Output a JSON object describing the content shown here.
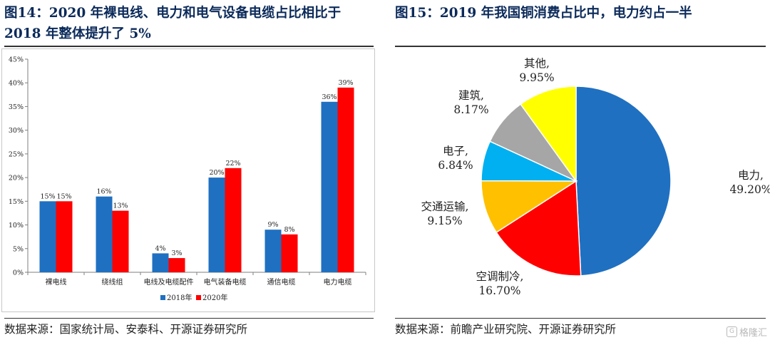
{
  "left": {
    "title_line1": "图14：2020 年裸电线、电力和电气设备电缆占比相比于",
    "title_line2": "2018 年整体提升了 5%",
    "source": "数据来源：国家统计局、安泰科、开源证券研究所"
  },
  "right": {
    "title": "图15：2019 年我国铜消费占比中，电力约占一半",
    "source": "数据来源：前瞻产业研究院、开源证券研究所"
  },
  "watermark": "格隆汇",
  "chart_data": [
    {
      "type": "bar",
      "title": "",
      "categories": [
        "裸电线",
        "绕线组",
        "电线及电缆配件",
        "电气装备电缆",
        "通信电缆",
        "电力电缆"
      ],
      "series": [
        {
          "name": "2018年",
          "color": "#1f70c1",
          "values": [
            15,
            16,
            4,
            20,
            9,
            36
          ],
          "labels": [
            "15%",
            "16%",
            "4%",
            "20%",
            "9%",
            "36%"
          ]
        },
        {
          "name": "2020年",
          "color": "#ff0000",
          "values": [
            15,
            13,
            3,
            22,
            8,
            39
          ],
          "labels": [
            "15%",
            "13%",
            "3%",
            "22%",
            "8%",
            "39%"
          ]
        }
      ],
      "ylim": [
        0,
        45
      ],
      "yticks": [
        "0%",
        "5%",
        "10%",
        "15%",
        "20%",
        "25%",
        "30%",
        "35%",
        "40%",
        "45%"
      ],
      "xlabel": "",
      "ylabel": "",
      "legend": "bottom-center"
    },
    {
      "type": "pie",
      "title": "",
      "slices": [
        {
          "name": "电力,",
          "value": 49.2,
          "label": "49.20%",
          "color": "#1f70c1"
        },
        {
          "name": "空调制冷,",
          "value": 16.7,
          "label": "16.70%",
          "color": "#ff0000"
        },
        {
          "name": "交通运输,",
          "value": 9.15,
          "label": "9.15%",
          "color": "#ffc000"
        },
        {
          "name": "电子,",
          "value": 6.84,
          "label": "6.84%",
          "color": "#00b0f0"
        },
        {
          "name": "建筑,",
          "value": 8.17,
          "label": "8.17%",
          "color": "#a6a6a6"
        },
        {
          "name": "其他,",
          "value": 9.95,
          "label": "9.95%",
          "color": "#ffff00"
        }
      ]
    }
  ]
}
